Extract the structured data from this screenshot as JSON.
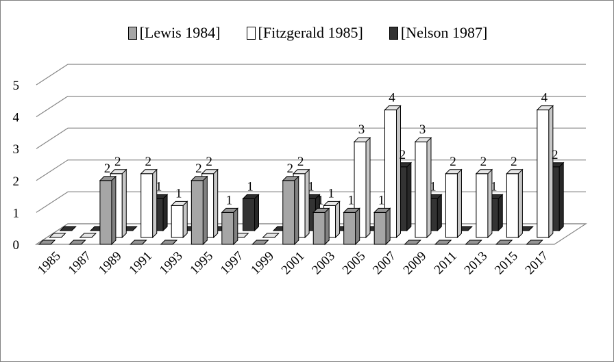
{
  "chart_data": {
    "type": "bar",
    "style": "3d-clustered-column",
    "title": "",
    "xlabel": "",
    "ylabel": "",
    "ylim": [
      0,
      5
    ],
    "yticks": [
      0,
      1,
      2,
      3,
      4,
      5
    ],
    "grid": true,
    "legend_position": "top-center",
    "categories": [
      "1985",
      "1987",
      "1989",
      "1991",
      "1993",
      "1995",
      "1997",
      "1999",
      "2001",
      "2003",
      "2005",
      "2007",
      "2009",
      "2011",
      "2013",
      "2015",
      "2017"
    ],
    "series": [
      {
        "name": "[Lewis 1984]",
        "color": "#a6a6a6",
        "values": [
          0,
          0,
          2,
          0,
          0,
          2,
          1,
          0,
          2,
          1,
          1,
          1,
          0,
          0,
          0,
          0,
          0
        ]
      },
      {
        "name": "[Fitzgerald 1985]",
        "color": "#ffffff",
        "values": [
          0,
          0,
          2,
          2,
          1,
          2,
          0,
          0,
          2,
          1,
          3,
          4,
          3,
          2,
          2,
          2,
          4
        ]
      },
      {
        "name": "[Nelson 1987]",
        "color": "#333333",
        "values": [
          0,
          0,
          0,
          1,
          0,
          0,
          1,
          0,
          1,
          0,
          0,
          2,
          1,
          0,
          1,
          0,
          2
        ]
      }
    ]
  }
}
